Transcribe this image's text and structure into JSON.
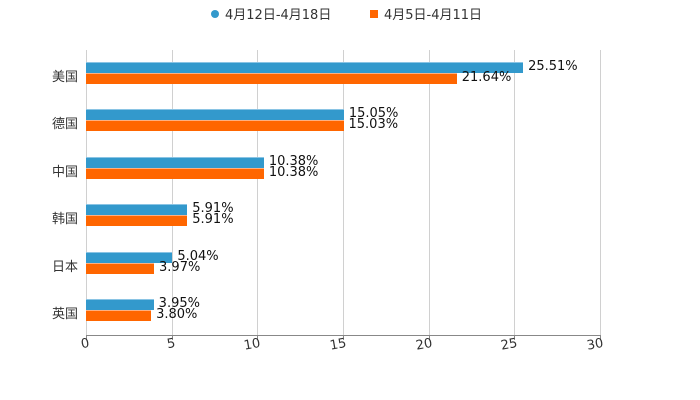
{
  "chart_data": {
    "type": "bar",
    "orientation": "horizontal",
    "title": "",
    "xlabel": "",
    "ylabel": "",
    "xlim": [
      0,
      30
    ],
    "x_ticks": [
      "0",
      "5",
      "10",
      "15",
      "20",
      "25",
      "30"
    ],
    "grid": true,
    "legend_position": "top",
    "categories": [
      "美国",
      "德国",
      "中国",
      "韩国",
      "日本",
      "英国"
    ],
    "series": [
      {
        "name": "4月12日-4月18日",
        "color": "#3399cc",
        "values": [
          25.51,
          15.05,
          10.38,
          5.91,
          5.04,
          3.95
        ],
        "labels": [
          "25.51%",
          "15.05%",
          "10.38%",
          "5.91%",
          "5.04%",
          "3.95%"
        ]
      },
      {
        "name": "4月5日-4月11日",
        "color": "#ff6600",
        "values": [
          21.64,
          15.03,
          10.38,
          5.91,
          3.97,
          3.8
        ],
        "labels": [
          "21.64%",
          "15.03%",
          "10.38%",
          "5.91%",
          "3.97%",
          "3.80%"
        ]
      }
    ]
  }
}
